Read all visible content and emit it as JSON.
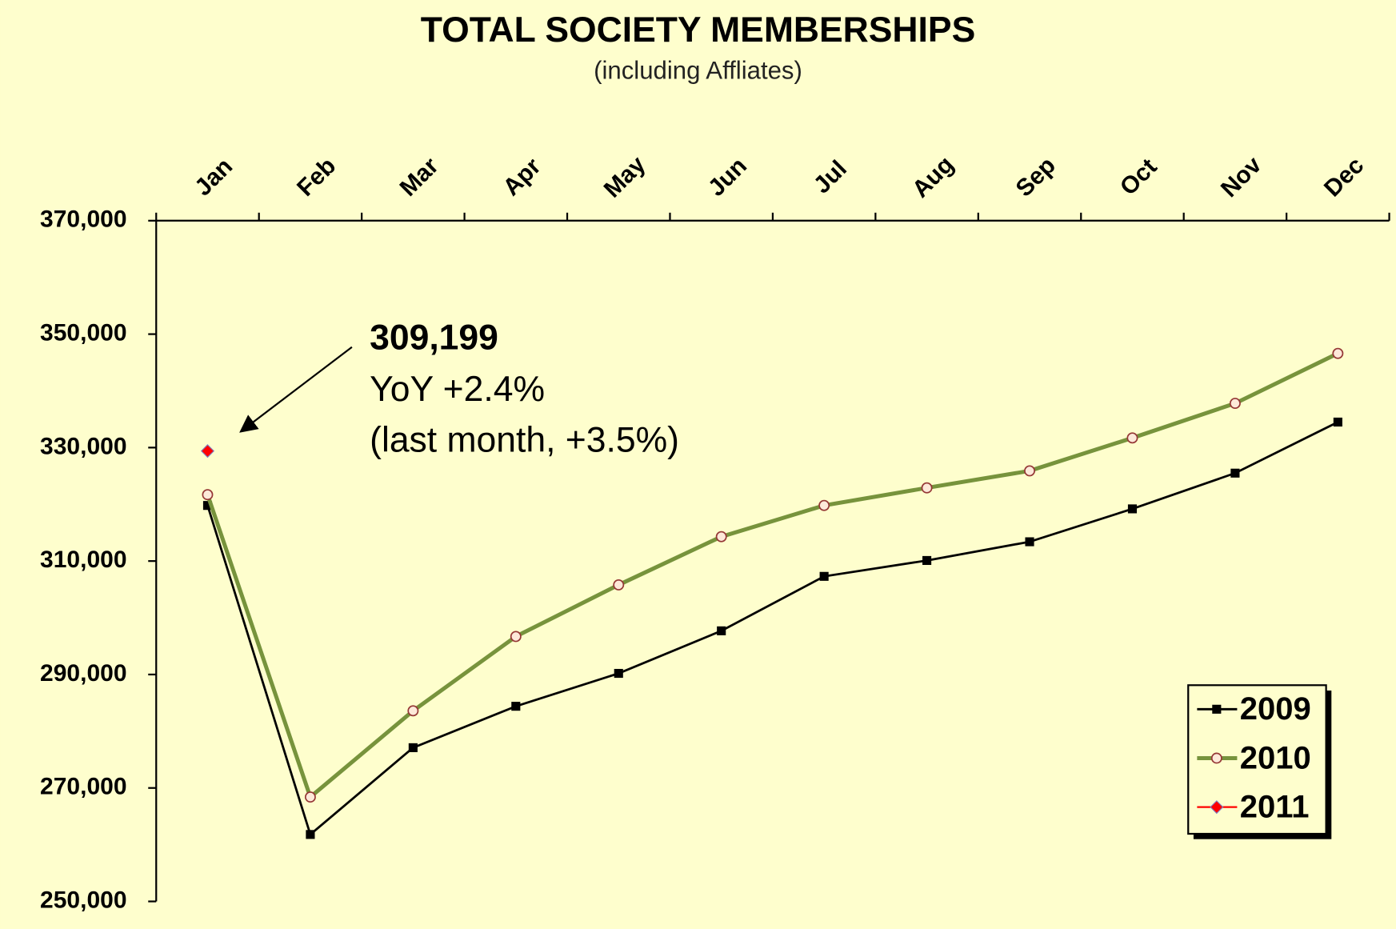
{
  "chart_data": {
    "type": "line",
    "title": "TOTAL SOCIETY MEMBERSHIPS",
    "subtitle": "(including Affliates)",
    "categories": [
      "Jan",
      "Feb",
      "Mar",
      "Apr",
      "May",
      "Jun",
      "Jul",
      "Aug",
      "Sep",
      "Oct",
      "Nov",
      "Dec"
    ],
    "series": [
      {
        "name": "2009",
        "color": "#000000",
        "values": [
          319800,
          261800,
          277100,
          284400,
          290200,
          297700,
          307300,
          310100,
          313400,
          319200,
          325500,
          334500
        ]
      },
      {
        "name": "2010",
        "color": "#77933c",
        "values": [
          321700,
          268400,
          283600,
          296700,
          305800,
          314300,
          319800,
          322900,
          325900,
          331700,
          337800,
          346600
        ]
      },
      {
        "name": "2011",
        "color": "#ff0000",
        "values": [
          329400,
          null,
          null,
          null,
          null,
          null,
          null,
          null,
          null,
          null,
          null,
          null
        ]
      }
    ],
    "ylim": [
      250000,
      370000
    ],
    "yticks": [
      {
        "value": 250000,
        "label": "250,000"
      },
      {
        "value": 270000,
        "label": "270,000"
      },
      {
        "value": 290000,
        "label": "290,000"
      },
      {
        "value": 310000,
        "label": "310,000"
      },
      {
        "value": 330000,
        "label": "330,000"
      },
      {
        "value": 350000,
        "label": "350,000"
      },
      {
        "value": 370000,
        "label": "370,000"
      }
    ],
    "annotation": {
      "value_text": "309,199",
      "lines": [
        "YoY +2.4%",
        "(last month, +3.5%)"
      ]
    },
    "legend": "lower right"
  }
}
